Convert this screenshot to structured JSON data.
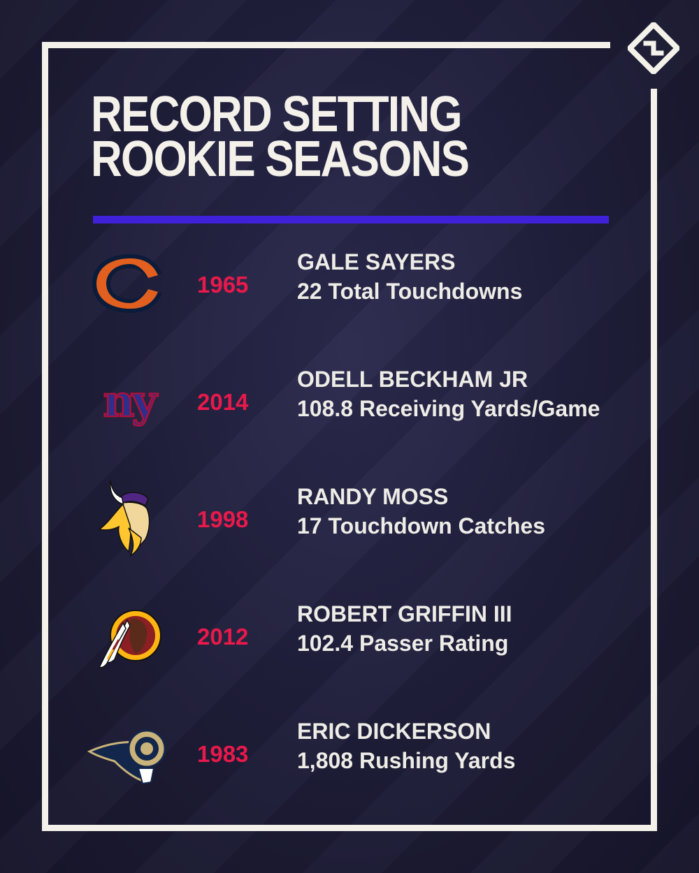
{
  "title": {
    "line1": "RECORD SETTING",
    "line2": "ROOKIE SEASONS"
  },
  "brand_icon": "sporting-news-logo-icon",
  "colors": {
    "accent_bar": "#3f21d9",
    "year_text": "#e8194b",
    "frame": "#f4f1ea"
  },
  "records": [
    {
      "team_icon": "bears-logo-icon",
      "year": "1965",
      "player": "GALE SAYERS",
      "stat": "22 Total Touchdowns"
    },
    {
      "team_icon": "giants-logo-icon",
      "year": "2014",
      "player": "ODELL BECKHAM JR",
      "stat": "108.8 Receiving Yards/Game"
    },
    {
      "team_icon": "vikings-logo-icon",
      "year": "1998",
      "player": "RANDY MOSS",
      "stat": "17 Touchdown Catches"
    },
    {
      "team_icon": "redskins-logo-icon",
      "year": "2012",
      "player": "ROBERT GRIFFIN III",
      "stat": "102.4 Passer Rating"
    },
    {
      "team_icon": "rams-logo-icon",
      "year": "1983",
      "player": "ERIC DICKERSON",
      "stat": "1,808 Rushing Yards"
    }
  ]
}
